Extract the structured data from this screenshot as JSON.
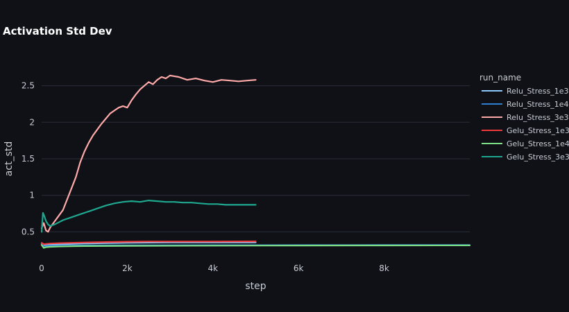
{
  "chart_data": {
    "type": "line",
    "title": "Activation Std Dev",
    "xlabel": "step",
    "ylabel": "act_std",
    "xlim": [
      0,
      10000
    ],
    "ylim": [
      0.2,
      2.8
    ],
    "x_ticks": [
      0,
      2000,
      4000,
      6000,
      8000
    ],
    "x_tick_labels": [
      "0",
      "2k",
      "4k",
      "6k",
      "8k"
    ],
    "y_ticks": [
      0.5,
      1,
      1.5,
      2,
      2.5
    ],
    "y_tick_labels": [
      "0.5",
      "1",
      "1.5",
      "2",
      "2.5"
    ],
    "grid": true,
    "legend": {
      "title": "run_name",
      "placement": "right"
    },
    "series": [
      {
        "name": "Relu_Stress_1e3",
        "color": "#8ecbff",
        "x": [
          0,
          50,
          100,
          200,
          400,
          700,
          1000,
          1500,
          2000,
          3000,
          4000,
          5000
        ],
        "y": [
          0.34,
          0.31,
          0.32,
          0.325,
          0.33,
          0.335,
          0.34,
          0.345,
          0.35,
          0.355,
          0.355,
          0.355
        ]
      },
      {
        "name": "Relu_Stress_1e4",
        "color": "#2f7fd0",
        "x": [
          0,
          50,
          100,
          200,
          400,
          700,
          1000,
          2000,
          4000,
          6000,
          8000,
          10000
        ],
        "y": [
          0.33,
          0.3,
          0.305,
          0.308,
          0.31,
          0.312,
          0.314,
          0.316,
          0.318,
          0.319,
          0.32,
          0.32
        ]
      },
      {
        "name": "Relu_Stress_3e3",
        "color": "#ffaaa8",
        "x": [
          0,
          50,
          100,
          150,
          200,
          300,
          400,
          500,
          600,
          700,
          800,
          900,
          1000,
          1100,
          1200,
          1300,
          1400,
          1500,
          1600,
          1700,
          1800,
          1900,
          2000,
          2100,
          2200,
          2300,
          2400,
          2500,
          2600,
          2700,
          2800,
          2900,
          3000,
          3200,
          3400,
          3600,
          3800,
          4000,
          4200,
          4400,
          4600,
          4800,
          5000
        ],
        "y": [
          0.55,
          0.62,
          0.52,
          0.5,
          0.56,
          0.64,
          0.72,
          0.8,
          0.95,
          1.1,
          1.25,
          1.45,
          1.6,
          1.72,
          1.82,
          1.9,
          1.98,
          2.05,
          2.12,
          2.16,
          2.2,
          2.22,
          2.2,
          2.3,
          2.38,
          2.45,
          2.5,
          2.55,
          2.52,
          2.58,
          2.62,
          2.6,
          2.64,
          2.62,
          2.58,
          2.6,
          2.57,
          2.55,
          2.58,
          2.57,
          2.56,
          2.57,
          2.58
        ]
      },
      {
        "name": "Gelu_Stress_1e3",
        "color": "#ee3a3a",
        "x": [
          0,
          50,
          100,
          200,
          400,
          700,
          1000,
          1500,
          2000,
          2500,
          3000,
          4000,
          5000
        ],
        "y": [
          0.35,
          0.33,
          0.335,
          0.34,
          0.345,
          0.35,
          0.355,
          0.36,
          0.365,
          0.368,
          0.368,
          0.368,
          0.37
        ]
      },
      {
        "name": "Gelu_Stress_1e4",
        "color": "#7de086",
        "x": [
          0,
          50,
          100,
          200,
          400,
          700,
          1000,
          2000,
          4000,
          6000,
          8000,
          10000
        ],
        "y": [
          0.32,
          0.28,
          0.29,
          0.295,
          0.3,
          0.303,
          0.305,
          0.308,
          0.311,
          0.313,
          0.314,
          0.315
        ]
      },
      {
        "name": "Gelu_Stress_3e3",
        "color": "#1fa890",
        "x": [
          0,
          30,
          60,
          100,
          150,
          200,
          300,
          400,
          500,
          700,
          900,
          1100,
          1300,
          1500,
          1700,
          1900,
          2100,
          2300,
          2500,
          2700,
          2900,
          3100,
          3300,
          3500,
          3700,
          3900,
          4100,
          4300,
          4500,
          4700,
          5000
        ],
        "y": [
          0.5,
          0.76,
          0.72,
          0.65,
          0.6,
          0.58,
          0.6,
          0.63,
          0.66,
          0.7,
          0.74,
          0.78,
          0.82,
          0.86,
          0.89,
          0.91,
          0.92,
          0.91,
          0.93,
          0.92,
          0.91,
          0.91,
          0.9,
          0.9,
          0.89,
          0.88,
          0.88,
          0.87,
          0.87,
          0.87,
          0.87
        ]
      }
    ]
  }
}
